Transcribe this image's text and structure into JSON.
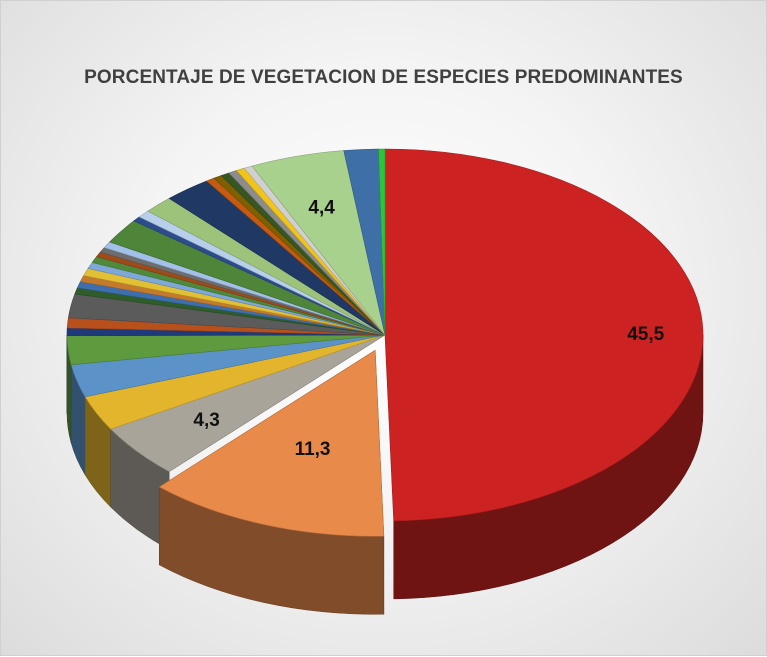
{
  "chart_data": {
    "type": "pie",
    "title": "PORCENTAJE DE VEGETACION DE ESPECIES PREDOMINANTES",
    "slices": [
      {
        "value": 45.5,
        "label": "45,5",
        "color": "#cc2222"
      },
      {
        "value": 11.3,
        "label": "11,3",
        "color": "#e88a4a"
      },
      {
        "value": 4.3,
        "label": "4,3",
        "color": "#a9a49a"
      },
      {
        "value": 2.8,
        "color": "#e3b52c"
      },
      {
        "value": 2.6,
        "color": "#5b93c9"
      },
      {
        "value": 2.3,
        "color": "#5e9a3e"
      },
      {
        "value": 0.6,
        "color": "#1f3a7a"
      },
      {
        "value": 0.8,
        "color": "#b8501c"
      },
      {
        "value": 1.9,
        "color": "#5b5b5b"
      },
      {
        "value": 0.5,
        "color": "#2e5c2a"
      },
      {
        "value": 0.5,
        "color": "#3d6fb0"
      },
      {
        "value": 0.5,
        "color": "#c47a2c"
      },
      {
        "value": 0.6,
        "color": "#e2c034"
      },
      {
        "value": 0.5,
        "color": "#7ea8d8"
      },
      {
        "value": 0.5,
        "color": "#4f8a3b"
      },
      {
        "value": 0.4,
        "color": "#9e4a1a"
      },
      {
        "value": 0.4,
        "color": "#6d6d6d"
      },
      {
        "value": 0.5,
        "color": "#a3c1e8"
      },
      {
        "value": 2.0,
        "color": "#4e8538"
      },
      {
        "value": 0.4,
        "color": "#2c4c8c"
      },
      {
        "value": 0.6,
        "color": "#b7cfea"
      },
      {
        "value": 1.4,
        "color": "#9dc37a"
      },
      {
        "value": 2.2,
        "color": "#1f3864"
      },
      {
        "value": 0.4,
        "color": "#c55a11"
      },
      {
        "value": 0.4,
        "color": "#7f6000"
      },
      {
        "value": 0.4,
        "color": "#375623"
      },
      {
        "value": 0.4,
        "color": "#8c8c8c"
      },
      {
        "value": 0.4,
        "color": "#f0c419"
      },
      {
        "value": 0.4,
        "color": "#d0d0d0"
      },
      {
        "value": 4.4,
        "label": "4,4",
        "color": "#a9d18e"
      },
      {
        "value": 1.6,
        "color": "#3e6fa6"
      },
      {
        "value": 0.3,
        "color": "#2ec43a"
      }
    ]
  }
}
